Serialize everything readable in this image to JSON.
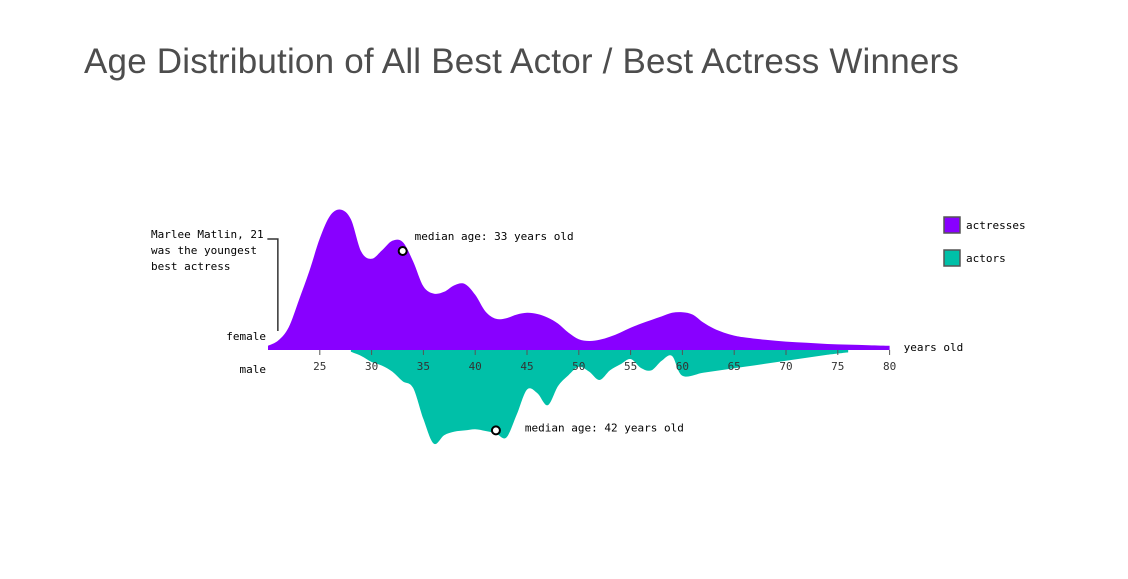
{
  "title": "Age Distribution of All Best Actor / Best Actress Winners",
  "chart_data": {
    "type": "area",
    "xlabel": "years old",
    "xlim": [
      20,
      80
    ],
    "x_ticks": [
      25,
      30,
      35,
      40,
      45,
      50,
      55,
      60,
      65,
      70,
      75,
      80
    ],
    "group_labels": {
      "top": "female",
      "bottom": "male"
    },
    "series": [
      {
        "name": "actresses",
        "side": "top",
        "color": "#8800ff",
        "x": [
          20,
          21,
          22,
          23,
          24,
          25,
          26,
          27,
          28,
          29,
          30,
          31,
          32,
          33,
          34,
          35,
          36,
          37,
          38,
          39,
          40,
          41,
          42,
          43,
          44,
          45,
          46,
          47,
          48,
          49,
          50,
          51,
          52,
          53,
          54,
          55,
          56,
          57,
          58,
          59,
          60,
          61,
          62,
          63,
          64,
          65,
          66,
          68,
          70,
          72,
          74,
          76,
          78,
          80
        ],
        "values": [
          0.7,
          1.6,
          3.8,
          8.4,
          13.2,
          18.6,
          22.4,
          23.4,
          21.8,
          16.4,
          15.2,
          16.6,
          18.2,
          18.0,
          14.8,
          10.6,
          9.4,
          9.7,
          10.8,
          11.0,
          9.2,
          6.4,
          5.2,
          5.3,
          5.9,
          6.2,
          6.0,
          5.4,
          4.4,
          2.9,
          1.8,
          1.5,
          1.7,
          2.2,
          2.9,
          3.7,
          4.4,
          5.0,
          5.6,
          6.2,
          6.3,
          5.9,
          4.6,
          3.6,
          2.9,
          2.4,
          2.1,
          1.7,
          1.4,
          1.2,
          1.0,
          0.9,
          0.8,
          0.7
        ]
      },
      {
        "name": "actors",
        "side": "bottom",
        "color": "#00c0a8",
        "x": [
          28,
          29,
          30,
          31,
          32,
          33,
          34,
          35,
          36,
          37,
          38,
          39,
          40,
          41,
          42,
          43,
          44,
          45,
          46,
          47,
          48,
          49,
          50,
          51,
          52,
          53,
          54,
          55,
          56,
          57,
          58,
          59,
          60,
          62,
          64,
          66,
          68,
          70,
          72,
          74,
          76
        ],
        "values": [
          0.3,
          1.0,
          2.0,
          2.6,
          3.6,
          5.2,
          6.3,
          11.5,
          15.6,
          14.2,
          13.6,
          13.4,
          13.2,
          13.5,
          13.9,
          14.6,
          10.8,
          6.6,
          7.2,
          9.2,
          6.0,
          4.2,
          2.8,
          3.6,
          5.0,
          3.4,
          2.4,
          1.5,
          3.0,
          3.4,
          1.8,
          1.0,
          4.3,
          3.8,
          3.3,
          2.8,
          2.3,
          1.8,
          1.3,
          0.8,
          0.4
        ]
      }
    ],
    "legend": {
      "position": "top-right",
      "items": [
        {
          "label": "actresses",
          "color": "#8800ff"
        },
        {
          "label": "actors",
          "color": "#00c0a8"
        }
      ]
    },
    "annotations": [
      {
        "text": "median age: 33 years old",
        "x": 33,
        "series": "actresses"
      },
      {
        "text": "median age: 42 years old",
        "x": 42,
        "series": "actors"
      },
      {
        "lines": [
          "Marlee Matlin, 21",
          "was the youngest",
          "best actress"
        ],
        "x": 21,
        "series": "actresses"
      }
    ]
  }
}
